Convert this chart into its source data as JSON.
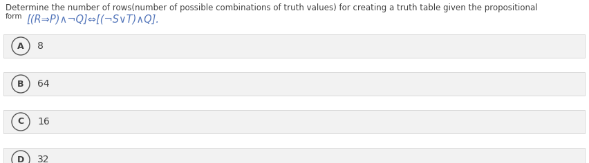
{
  "question_line1": "Determine the number of rows(number of possible combinations of truth values) for creating a truth table given the propositional",
  "question_line2_prefix": "form ",
  "formula": "[(R⇒P)∧¬Q]⇔[(¬S∨T)∧Q]",
  "formula_suffix": ".",
  "options": [
    {
      "label": "A",
      "value": "8"
    },
    {
      "label": "B",
      "value": "64"
    },
    {
      "label": "C",
      "value": "16"
    },
    {
      "label": "D",
      "value": "32"
    }
  ],
  "bg_color": "#ffffff",
  "option_bg_color": "#f2f2f2",
  "option_border_color": "#cccccc",
  "text_color": "#404040",
  "formula_color": "#5577bb",
  "circle_edge_color": "#555555",
  "circle_label_color": "#404040",
  "question_fontsize": 8.5,
  "formula_fontsize": 10.5,
  "option_value_fontsize": 10,
  "label_fontsize": 9,
  "fig_width": 8.52,
  "fig_height": 2.37,
  "dpi": 100
}
